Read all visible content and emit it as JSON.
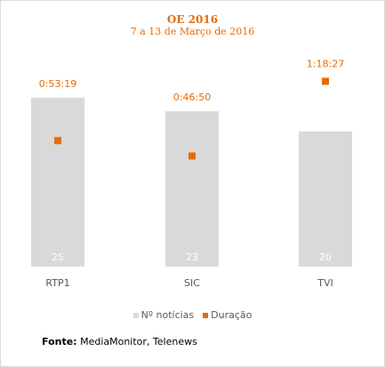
{
  "chart_data": {
    "type": "bar",
    "title": "OE 2016",
    "subtitle": "7 a 13 de Março de 2016",
    "categories": [
      "RTP1",
      "SIC",
      "TVI"
    ],
    "series": [
      {
        "name": "Nº notícias",
        "type": "bar",
        "color": "#d9d9d9",
        "values": [
          25,
          23,
          20
        ],
        "labels": [
          "25",
          "23",
          "20"
        ]
      },
      {
        "name": "Duração",
        "type": "scatter",
        "color": "#e36c0a",
        "values": [
          "0:53:19",
          "0:46:50",
          "1:18:27"
        ],
        "labels": [
          "0:53:19",
          "0:46:50",
          "1:18:27"
        ]
      }
    ],
    "legend": "bottom"
  },
  "source": {
    "label": "Fonte:",
    "text": " MediaMonitor, Telenews"
  }
}
